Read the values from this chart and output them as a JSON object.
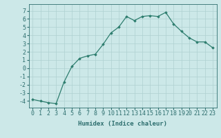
{
  "x": [
    0,
    1,
    2,
    3,
    4,
    5,
    6,
    7,
    8,
    9,
    10,
    11,
    12,
    13,
    14,
    15,
    16,
    17,
    18,
    19,
    20,
    21,
    22,
    23
  ],
  "y": [
    -3.8,
    -4.0,
    -4.2,
    -4.3,
    -1.7,
    0.2,
    1.2,
    1.5,
    1.7,
    2.9,
    4.3,
    5.0,
    6.3,
    5.8,
    6.3,
    6.4,
    6.3,
    6.8,
    5.4,
    4.5,
    3.7,
    3.2,
    3.2,
    2.5
  ],
  "line_color": "#2d7d6e",
  "marker": "D",
  "marker_size": 1.8,
  "bg_color": "#cce8e8",
  "grid_color": "#aed0d0",
  "xlabel": "Humidex (Indice chaleur)",
  "xlabel_fontsize": 6.5,
  "ylabel_fontsize": 6,
  "tick_fontsize": 6,
  "ylim": [
    -4.8,
    7.8
  ],
  "xlim": [
    -0.5,
    23.5
  ],
  "yticks": [
    -4,
    -3,
    -2,
    -1,
    0,
    1,
    2,
    3,
    4,
    5,
    6,
    7
  ],
  "xticks": [
    0,
    1,
    2,
    3,
    4,
    5,
    6,
    7,
    8,
    9,
    10,
    11,
    12,
    13,
    14,
    15,
    16,
    17,
    18,
    19,
    20,
    21,
    22,
    23
  ],
  "text_color": "#2d6e6e",
  "spine_color": "#2d6e6e",
  "linewidth": 0.9
}
